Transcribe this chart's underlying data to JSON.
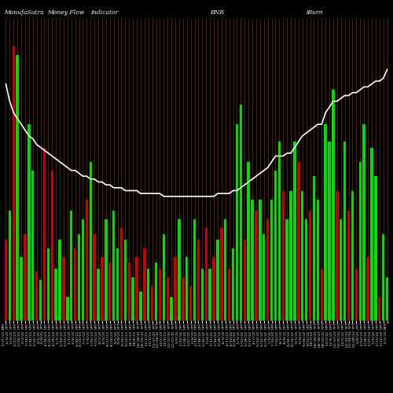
{
  "title_left": "ManufaSutra",
  "title_mid1": "Money Flow",
  "title_mid2": "Indicator",
  "title_bnr": "BNR",
  "title_iburn": "iBurn",
  "bg_color": "#000000",
  "line_color": "#ffffff",
  "green_color": "#00dd00",
  "red_color": "#cc0000",
  "orange_color": "#8B4000",
  "bar_values": [
    0.28,
    0.38,
    0.95,
    0.92,
    0.22,
    0.3,
    0.68,
    0.52,
    0.17,
    0.14,
    0.6,
    0.25,
    0.52,
    0.18,
    0.28,
    0.22,
    0.08,
    0.38,
    0.25,
    0.3,
    0.35,
    0.42,
    0.55,
    0.3,
    0.18,
    0.22,
    0.35,
    0.2,
    0.38,
    0.25,
    0.32,
    0.28,
    0.2,
    0.15,
    0.22,
    0.1,
    0.25,
    0.18,
    0.12,
    0.2,
    0.18,
    0.3,
    0.15,
    0.08,
    0.22,
    0.35,
    0.15,
    0.22,
    0.12,
    0.35,
    0.28,
    0.18,
    0.32,
    0.18,
    0.22,
    0.28,
    0.32,
    0.35,
    0.18,
    0.25,
    0.68,
    0.75,
    0.28,
    0.55,
    0.42,
    0.38,
    0.42,
    0.3,
    0.35,
    0.42,
    0.52,
    0.62,
    0.45,
    0.35,
    0.45,
    0.62,
    0.55,
    0.45,
    0.35,
    0.38,
    0.5,
    0.42,
    0.18,
    0.68,
    0.62,
    0.8,
    0.45,
    0.35,
    0.62,
    0.38,
    0.45,
    0.18,
    0.55,
    0.68,
    0.22,
    0.6,
    0.5,
    0.08,
    0.3,
    0.15
  ],
  "bar_colors": [
    "red",
    "green",
    "red",
    "green",
    "green",
    "red",
    "green",
    "green",
    "red",
    "green",
    "red",
    "green",
    "red",
    "green",
    "green",
    "red",
    "green",
    "green",
    "red",
    "green",
    "green",
    "red",
    "green",
    "red",
    "green",
    "red",
    "green",
    "red",
    "green",
    "green",
    "red",
    "green",
    "red",
    "green",
    "red",
    "green",
    "red",
    "green",
    "red",
    "green",
    "red",
    "green",
    "red",
    "green",
    "red",
    "green",
    "red",
    "green",
    "red",
    "green",
    "red",
    "green",
    "red",
    "green",
    "red",
    "green",
    "red",
    "green",
    "red",
    "green",
    "green",
    "green",
    "red",
    "green",
    "green",
    "red",
    "green",
    "green",
    "red",
    "green",
    "green",
    "green",
    "red",
    "green",
    "green",
    "green",
    "red",
    "green",
    "green",
    "red",
    "green",
    "green",
    "red",
    "green",
    "green",
    "green",
    "red",
    "green",
    "green",
    "red",
    "green",
    "red",
    "green",
    "green",
    "red",
    "green",
    "green",
    "red",
    "green",
    "green"
  ],
  "line_values": [
    0.82,
    0.76,
    0.72,
    0.7,
    0.68,
    0.66,
    0.64,
    0.63,
    0.61,
    0.6,
    0.59,
    0.58,
    0.57,
    0.56,
    0.55,
    0.54,
    0.53,
    0.52,
    0.52,
    0.51,
    0.5,
    0.5,
    0.49,
    0.49,
    0.48,
    0.48,
    0.47,
    0.47,
    0.46,
    0.46,
    0.46,
    0.45,
    0.45,
    0.45,
    0.45,
    0.44,
    0.44,
    0.44,
    0.44,
    0.44,
    0.44,
    0.43,
    0.43,
    0.43,
    0.43,
    0.43,
    0.43,
    0.43,
    0.43,
    0.43,
    0.43,
    0.43,
    0.43,
    0.43,
    0.43,
    0.44,
    0.44,
    0.44,
    0.44,
    0.45,
    0.45,
    0.46,
    0.47,
    0.48,
    0.49,
    0.5,
    0.51,
    0.52,
    0.53,
    0.55,
    0.57,
    0.57,
    0.57,
    0.58,
    0.58,
    0.6,
    0.62,
    0.64,
    0.65,
    0.66,
    0.67,
    0.68,
    0.68,
    0.72,
    0.74,
    0.76,
    0.76,
    0.77,
    0.78,
    0.78,
    0.79,
    0.79,
    0.8,
    0.81,
    0.81,
    0.82,
    0.83,
    0.83,
    0.84,
    0.87
  ],
  "dates": [
    "1/27/21 NPS",
    "2/4/21 YPT",
    "2/9/21 YPT",
    "2/17/21 YPT",
    "2/24/21 YPT",
    "3/3/21 YPT",
    "3/10/21 YPT",
    "3/18/21 YPT",
    "3/25/21 YPT",
    "4/1/21 YPT",
    "4/9/21 YPT",
    "4/16/21 YPT",
    "4/22/21 YPT",
    "4/29/21 YPT",
    "5/7/21 YPT",
    "5/14/21 YPT",
    "5/21/21 YPT",
    "6/1/21 YPT",
    "6/8/21 YPT",
    "6/16/21 YPT",
    "6/23/21 YPT",
    "7/1/21 YPT",
    "7/8/21 YPT",
    "7/16/21 YPT",
    "7/23/21 YPT",
    "8/2/21 YPT",
    "8/9/21 YPT",
    "8/17/21 YPT",
    "8/24/21 YPT",
    "9/1/21 YPT",
    "9/8/21 YPT",
    "9/16/21 YPT",
    "9/23/21 YPT",
    "10/1/21 YPT",
    "10/8/21 YPT",
    "10/18/21 YPT",
    "10/25/21 YPT",
    "11/2/21 YPT",
    "11/9/21 YPT",
    "11/17/21 YPT",
    "11/24/21 YPT",
    "12/2/21 YPT",
    "12/9/21 YPT",
    "12/17/21 YPT",
    "12/27/21 YPT",
    "1/6/22 YPT",
    "1/13/22 YPT",
    "1/20/22 YPT",
    "1/27/22 YPT",
    "2/4/22 YPT",
    "2/10/22 YPT",
    "2/18/22 YPT",
    "2/25/22 YPT",
    "3/4/22 YPT",
    "3/11/22 YPT",
    "3/18/22 YPT",
    "3/28/22 YPT",
    "4/4/22 YPT",
    "4/11/22 YPT",
    "4/19/22 YPT",
    "4/26/22 YPT",
    "5/5/22 YPT",
    "5/12/22 YPT",
    "5/20/22 YPT",
    "5/27/22 YPT",
    "6/7/22 YPT",
    "6/14/22 YPT",
    "6/22/22 YPT",
    "6/29/22 YPT",
    "7/8/22 YPT",
    "7/15/22 YPT",
    "7/22/22 YPT",
    "8/1/22 YPT",
    "8/8/22 YPT",
    "8/16/22 YPT",
    "8/23/22 YPT",
    "9/1/22 YPT",
    "9/8/22 YPT",
    "9/16/22 YPT",
    "9/23/22 YPT",
    "10/3/22 YPT",
    "10/10/22 YPT",
    "10/18/22 YPT",
    "10/25/22 YPT",
    "11/2/22 YPT",
    "11/9/22 YPT",
    "11/17/22 YPT",
    "11/25/22 YPT",
    "12/5/22 YPT",
    "12/12/22 YPT",
    "12/20/22 YPT",
    "12/28/22 YPT",
    "1/6/23 YPT",
    "1/13/23 YPT",
    "1/20/23 YPT",
    "1/27/23 YPT",
    "2/6/23 YPT",
    "2/13/23 YPT",
    "2/21/23 YPT",
    "3/1/23 NPS"
  ]
}
